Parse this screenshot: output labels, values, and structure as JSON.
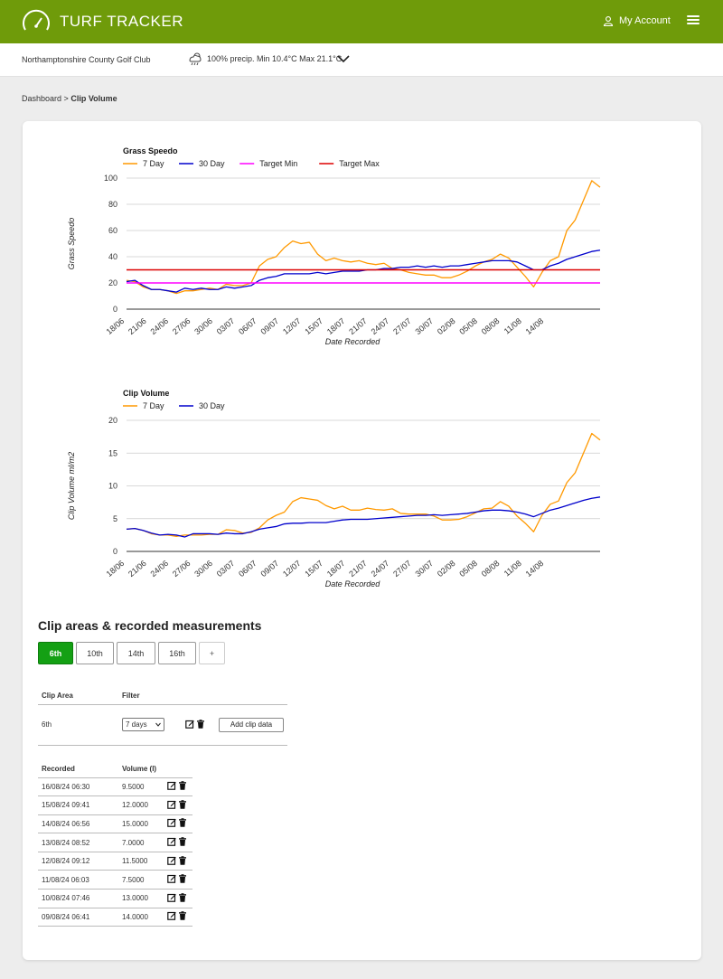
{
  "header": {
    "brand": "TURF TRACKER",
    "account_label": "My Account",
    "logo_icon": "speedometer-icon",
    "menu_icon": "hamburger-menu-icon",
    "account_icon": "user-icon",
    "color": "#6f9b0a"
  },
  "subbar": {
    "club_name": "Northamptonshire County Golf Club",
    "weather_text": "100% precip. Min 10.4°C Max 21.1°C",
    "weather_icon": "cloud-rain-sun-icon",
    "dropdown_icon": "chevron-down-icon"
  },
  "breadcrumb": {
    "parent": "Dashboard",
    "separator": ">",
    "current": "Clip Volume"
  },
  "chart_data": [
    {
      "type": "line",
      "title": "Grass Speedo",
      "xlabel": "Date Recorded",
      "ylabel": "Grass Speedo",
      "ylim": [
        0,
        100
      ],
      "yticks": [
        0,
        20,
        40,
        60,
        80,
        100
      ],
      "xtick_labels": [
        "18/06",
        "21/06",
        "24/06",
        "27/06",
        "30/06",
        "03/07",
        "06/07",
        "09/07",
        "12/07",
        "15/07",
        "18/07",
        "21/07",
        "24/07",
        "27/07",
        "30/07",
        "02/08",
        "05/08",
        "08/08",
        "11/08",
        "14/08"
      ],
      "grid": true,
      "legend_position": "top-left",
      "series": [
        {
          "name": "7 Day",
          "color": "#ff9900",
          "values": [
            22,
            21,
            17,
            15,
            15,
            14,
            12,
            14,
            14,
            15,
            16,
            15,
            19,
            18,
            18,
            20,
            33,
            38,
            40,
            47,
            52,
            50,
            51,
            42,
            37,
            39,
            37,
            36,
            37,
            35,
            34,
            35,
            31,
            30,
            28,
            27,
            26,
            26,
            24,
            24,
            26,
            29,
            33,
            36,
            38,
            42,
            39,
            32,
            25,
            17,
            28,
            37,
            40,
            60,
            68,
            83,
            98,
            93
          ]
        },
        {
          "name": "30 Day",
          "color": "#0000cc",
          "values": [
            21,
            22,
            18,
            15,
            15,
            14,
            13,
            16,
            15,
            16,
            15,
            15,
            17,
            16,
            17,
            18,
            22,
            24,
            25,
            27,
            27,
            27,
            27,
            28,
            27,
            28,
            29,
            29,
            29,
            30,
            30,
            31,
            31,
            32,
            32,
            33,
            32,
            33,
            32,
            33,
            33,
            34,
            35,
            36,
            37,
            37,
            37,
            36,
            33,
            30,
            30,
            33,
            35,
            38,
            40,
            42,
            44,
            45
          ]
        },
        {
          "name": "Target Min",
          "color": "#ff00ff",
          "values": [
            20,
            20
          ]
        },
        {
          "name": "Target Max",
          "color": "#dd0000",
          "values": [
            30,
            30
          ]
        }
      ]
    },
    {
      "type": "line",
      "title": "Clip Volume",
      "xlabel": "Date Recorded",
      "ylabel": "Clip Volume ml/m2",
      "ylim": [
        0,
        20
      ],
      "yticks": [
        0,
        5,
        10,
        15,
        20
      ],
      "xtick_labels": [
        "18/06",
        "21/06",
        "24/06",
        "27/06",
        "30/06",
        "03/07",
        "06/07",
        "09/07",
        "12/07",
        "15/07",
        "18/07",
        "21/07",
        "24/07",
        "27/07",
        "30/07",
        "02/08",
        "05/08",
        "08/08",
        "11/08",
        "14/08"
      ],
      "grid": true,
      "legend_position": "top-left",
      "series": [
        {
          "name": "7 Day",
          "color": "#ff9900",
          "values": [
            3.4,
            3.5,
            3.2,
            2.7,
            2.5,
            2.5,
            2.3,
            2.5,
            2.5,
            2.5,
            2.6,
            2.6,
            3.3,
            3.2,
            2.8,
            2.9,
            3.6,
            4.8,
            5.5,
            6.0,
            7.6,
            8.2,
            8.0,
            7.8,
            7.0,
            6.5,
            6.9,
            6.3,
            6.3,
            6.6,
            6.4,
            6.3,
            6.5,
            5.8,
            5.7,
            5.7,
            5.7,
            5.4,
            4.8,
            4.8,
            4.9,
            5.3,
            5.9,
            6.5,
            6.6,
            7.6,
            6.9,
            5.4,
            4.3,
            3.0,
            5.5,
            7.2,
            7.7,
            10.5,
            12.0,
            15.0,
            18.0,
            17.0
          ]
        },
        {
          "name": "30 Day",
          "color": "#0000cc",
          "values": [
            3.4,
            3.5,
            3.2,
            2.8,
            2.5,
            2.6,
            2.5,
            2.2,
            2.7,
            2.7,
            2.7,
            2.6,
            2.8,
            2.7,
            2.7,
            3.0,
            3.4,
            3.6,
            3.8,
            4.2,
            4.3,
            4.3,
            4.4,
            4.4,
            4.4,
            4.6,
            4.8,
            4.9,
            4.9,
            4.9,
            5.0,
            5.1,
            5.2,
            5.3,
            5.4,
            5.5,
            5.5,
            5.6,
            5.5,
            5.6,
            5.7,
            5.8,
            6.0,
            6.2,
            6.3,
            6.3,
            6.2,
            6.0,
            5.7,
            5.3,
            5.8,
            6.3,
            6.6,
            7.0,
            7.4,
            7.8,
            8.1,
            8.3
          ]
        }
      ]
    }
  ],
  "clip_section": {
    "title": "Clip areas & recorded measurements",
    "tabs": [
      {
        "label": "6th",
        "active": true
      },
      {
        "label": "10th",
        "active": false
      },
      {
        "label": "14th",
        "active": false
      },
      {
        "label": "16th",
        "active": false
      },
      {
        "label": "+",
        "active": false
      }
    ],
    "area_table": {
      "headers": [
        "Clip Area",
        "Filter"
      ],
      "row": {
        "area": "6th",
        "filter_value": "7 days",
        "add_button": "Add clip data"
      }
    },
    "records_table": {
      "headers": [
        "Recorded",
        "Volume (l)"
      ],
      "rows": [
        {
          "recorded": "16/08/24 06:30",
          "volume": "9.5000"
        },
        {
          "recorded": "15/08/24 09:41",
          "volume": "12.0000"
        },
        {
          "recorded": "14/08/24 06:56",
          "volume": "15.0000"
        },
        {
          "recorded": "13/08/24 08:52",
          "volume": "7.0000"
        },
        {
          "recorded": "12/08/24 09:12",
          "volume": "11.5000"
        },
        {
          "recorded": "11/08/24 06:03",
          "volume": "7.5000"
        },
        {
          "recorded": "10/08/24 07:46",
          "volume": "13.0000"
        },
        {
          "recorded": "09/08/24 06:41",
          "volume": "14.0000"
        }
      ]
    },
    "row_icons": [
      "edit-icon",
      "trash-icon"
    ]
  }
}
